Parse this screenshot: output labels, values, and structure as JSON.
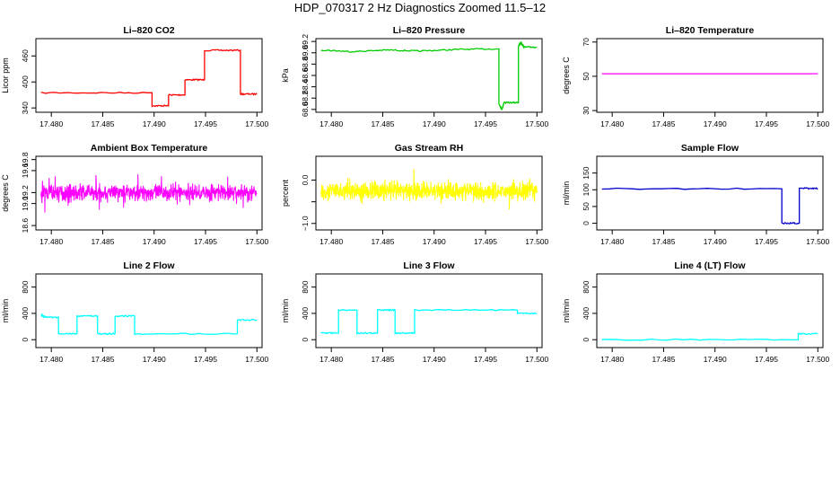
{
  "figure": {
    "title": "HDP_070317  2 Hz Diagnostics Zoomed 11.5–12"
  },
  "colors": {
    "red": "#ff0000",
    "green": "#00cc00",
    "magenta": "#ff00ff",
    "yellow": "#ffff00",
    "blue": "#0000cc",
    "cyan": "#00ffff",
    "axis": "#000000"
  },
  "chart_data": [
    {
      "type": "line",
      "title": "Li–820 CO2",
      "ylabel": "Licor ppm",
      "color": "red",
      "xlim": [
        17.4785,
        17.5005
      ],
      "ylim": [
        330,
        500
      ],
      "xticks": [
        17.48,
        17.485,
        17.49,
        17.495,
        17.5
      ],
      "xticklabels": [
        "17.480",
        "17.485",
        "17.490",
        "17.495",
        "17.500"
      ],
      "yticks": [
        340,
        400,
        460
      ],
      "yticklabels": [
        "340",
        "400",
        "460"
      ],
      "series": [
        {
          "step": true,
          "points": [
            [
              17.479,
              375
            ],
            [
              17.4898,
              375
            ],
            [
              17.4898,
              345
            ],
            [
              17.4914,
              345
            ],
            [
              17.4914,
              370
            ],
            [
              17.493,
              370
            ],
            [
              17.493,
              405
            ],
            [
              17.4949,
              405
            ],
            [
              17.4949,
              473
            ],
            [
              17.4984,
              473
            ],
            [
              17.4984,
              372
            ],
            [
              17.5,
              372
            ]
          ]
        }
      ],
      "noise": "low"
    },
    {
      "type": "line",
      "title": "Li–820 Pressure",
      "ylabel": "kPa",
      "color": "green",
      "xlim": [
        17.4785,
        17.5005
      ],
      "ylim": [
        67.95,
        69.25
      ],
      "xticks": [
        17.48,
        17.485,
        17.49,
        17.495,
        17.5
      ],
      "xticklabels": [
        "17.480",
        "17.485",
        "17.490",
        "17.495",
        "17.500"
      ],
      "yticks": [
        68.0,
        68.2,
        68.4,
        68.6,
        68.8,
        69.0,
        69.2
      ],
      "yticklabels": [
        "68.0",
        "68.2",
        "68.4",
        "68.6",
        "68.8",
        "69.0",
        "69.2"
      ],
      "series": [
        {
          "step": true,
          "points": [
            [
              17.479,
              69.05
            ],
            [
              17.482,
              69.02
            ],
            [
              17.4855,
              69.05
            ],
            [
              17.4885,
              69.03
            ],
            [
              17.4925,
              69.06
            ],
            [
              17.4963,
              69.07
            ],
            [
              17.4963,
              68.1
            ],
            [
              17.4966,
              68.0
            ],
            [
              17.4968,
              68.12
            ],
            [
              17.4982,
              68.12
            ],
            [
              17.4982,
              69.12
            ],
            [
              17.49845,
              69.18
            ],
            [
              17.49875,
              69.1
            ],
            [
              17.5,
              69.1
            ]
          ]
        }
      ],
      "noise": "low"
    },
    {
      "type": "line",
      "title": "Li–820 Temperature",
      "ylabel": "degrees C",
      "color": "magenta",
      "xlim": [
        17.4785,
        17.5005
      ],
      "ylim": [
        29,
        72
      ],
      "xticks": [
        17.48,
        17.485,
        17.49,
        17.495,
        17.5
      ],
      "xticklabels": [
        "17.480",
        "17.485",
        "17.490",
        "17.495",
        "17.500"
      ],
      "yticks": [
        30,
        50,
        70
      ],
      "yticklabels": [
        "30",
        "50",
        "70"
      ],
      "series": [
        {
          "step": false,
          "points": [
            [
              17.479,
              51.5
            ],
            [
              17.5,
              51.5
            ]
          ]
        }
      ],
      "noise": "none"
    },
    {
      "type": "line",
      "title": "Ambient Box Temperature",
      "ylabel": "degrees C",
      "color": "magenta",
      "xlim": [
        17.4785,
        17.5005
      ],
      "ylim": [
        18.52,
        19.86
      ],
      "xticks": [
        17.48,
        17.485,
        17.49,
        17.495,
        17.5
      ],
      "xticklabels": [
        "17.480",
        "17.485",
        "17.490",
        "17.495",
        "17.500"
      ],
      "yticks": [
        18.6,
        19.0,
        19.2,
        19.6,
        19.8
      ],
      "yticklabels": [
        "18.6",
        "19.0",
        "19.2",
        "19.6",
        "19.8"
      ],
      "series": [
        {
          "step": false,
          "points": [
            [
              17.479,
              19.2
            ],
            [
              17.5,
              19.2
            ]
          ]
        }
      ],
      "noise": "high",
      "noise_amp": 0.22
    },
    {
      "type": "line",
      "title": "Gas Stream RH",
      "ylabel": "percent",
      "color": "yellow",
      "xlim": [
        17.4785,
        17.5005
      ],
      "ylim": [
        -1.15,
        0.55
      ],
      "xticks": [
        17.48,
        17.485,
        17.49,
        17.495,
        17.5
      ],
      "xticklabels": [
        "17.480",
        "17.485",
        "17.490",
        "17.495",
        "17.500"
      ],
      "yticks": [
        -1.0,
        -0.5,
        0.0
      ],
      "yticklabels": [
        "−1.0",
        "",
        "0.0"
      ],
      "series": [
        {
          "step": false,
          "points": [
            [
              17.479,
              -0.25
            ],
            [
              17.5,
              -0.25
            ]
          ]
        }
      ],
      "noise": "high",
      "noise_amp": 0.32
    },
    {
      "type": "line",
      "title": "Sample Flow",
      "ylabel": "ml/min",
      "color": "blue",
      "xlim": [
        17.4785,
        17.5005
      ],
      "ylim": [
        -20,
        200
      ],
      "xticks": [
        17.48,
        17.485,
        17.49,
        17.495,
        17.5
      ],
      "xticklabels": [
        "17.480",
        "17.485",
        "17.490",
        "17.495",
        "17.500"
      ],
      "yticks": [
        0,
        50,
        100,
        150
      ],
      "yticklabels": [
        "0",
        "50",
        "100",
        "150"
      ],
      "series": [
        {
          "step": true,
          "points": [
            [
              17.479,
              103
            ],
            [
              17.4965,
              103
            ],
            [
              17.4965,
              0
            ],
            [
              17.4982,
              0
            ],
            [
              17.4982,
              104
            ],
            [
              17.5,
              104
            ]
          ]
        }
      ],
      "noise": "low"
    },
    {
      "type": "line",
      "title": "Line 2 Flow",
      "ylabel": "ml/min",
      "color": "cyan",
      "xlim": [
        17.4785,
        17.5005
      ],
      "ylim": [
        -120,
        1000
      ],
      "xticks": [
        17.48,
        17.485,
        17.49,
        17.495,
        17.5
      ],
      "xticklabels": [
        "17.480",
        "17.485",
        "17.490",
        "17.495",
        "17.500"
      ],
      "yticks": [
        0,
        400,
        800
      ],
      "yticklabels": [
        "0",
        "400",
        "800"
      ],
      "series": [
        {
          "step": true,
          "points": [
            [
              17.479,
              380
            ],
            [
              17.4795,
              340
            ],
            [
              17.4807,
              340
            ],
            [
              17.4807,
              90
            ],
            [
              17.4825,
              90
            ],
            [
              17.4825,
              360
            ],
            [
              17.4845,
              360
            ],
            [
              17.4845,
              90
            ],
            [
              17.4862,
              90
            ],
            [
              17.4862,
              360
            ],
            [
              17.4881,
              360
            ],
            [
              17.4881,
              90
            ],
            [
              17.4981,
              90
            ],
            [
              17.4981,
              300
            ],
            [
              17.5,
              300
            ]
          ]
        }
      ],
      "noise": "low"
    },
    {
      "type": "line",
      "title": "Line 3 Flow",
      "ylabel": "ml/min",
      "color": "cyan",
      "xlim": [
        17.4785,
        17.5005
      ],
      "ylim": [
        -120,
        1000
      ],
      "xticks": [
        17.48,
        17.485,
        17.49,
        17.495,
        17.5
      ],
      "xticklabels": [
        "17.480",
        "17.485",
        "17.490",
        "17.495",
        "17.500"
      ],
      "yticks": [
        0,
        400,
        800
      ],
      "yticklabels": [
        "0",
        "400",
        "800"
      ],
      "series": [
        {
          "step": true,
          "points": [
            [
              17.479,
              100
            ],
            [
              17.4807,
              100
            ],
            [
              17.4807,
              450
            ],
            [
              17.4825,
              450
            ],
            [
              17.4825,
              100
            ],
            [
              17.4845,
              100
            ],
            [
              17.4845,
              450
            ],
            [
              17.4862,
              450
            ],
            [
              17.4862,
              100
            ],
            [
              17.4881,
              100
            ],
            [
              17.4881,
              450
            ],
            [
              17.4981,
              450
            ],
            [
              17.4981,
              400
            ],
            [
              17.5,
              400
            ]
          ]
        }
      ],
      "noise": "low"
    },
    {
      "type": "line",
      "title": "Line 4 (LT) Flow",
      "ylabel": "ml/min",
      "color": "cyan",
      "xlim": [
        17.4785,
        17.5005
      ],
      "ylim": [
        -120,
        1000
      ],
      "xticks": [
        17.48,
        17.485,
        17.49,
        17.495,
        17.5
      ],
      "xticklabels": [
        "17.480",
        "17.485",
        "17.490",
        "17.495",
        "17.500"
      ],
      "yticks": [
        0,
        400,
        800
      ],
      "yticklabels": [
        "0",
        "400",
        "800"
      ],
      "series": [
        {
          "step": true,
          "points": [
            [
              17.479,
              0
            ],
            [
              17.4981,
              0
            ],
            [
              17.4981,
              90
            ],
            [
              17.5,
              90
            ]
          ]
        }
      ],
      "noise": "low"
    }
  ]
}
